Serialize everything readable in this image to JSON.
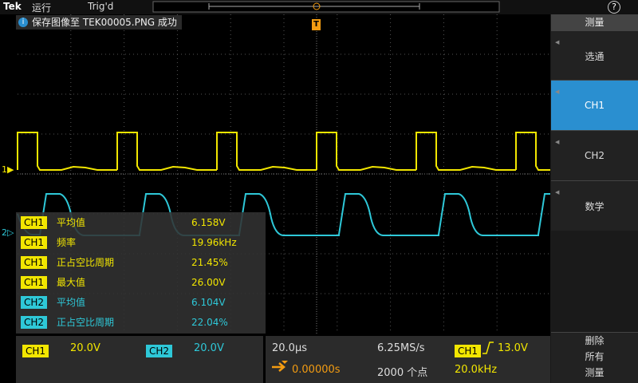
{
  "status_bar": {
    "brand": "Tek",
    "run_state": "运行",
    "trigger_state": "Trig'd",
    "help": "?"
  },
  "notification": "保存图像至 TEK00005.PNG 成功",
  "channel_markers": [
    "1",
    "2"
  ],
  "trigger_marker": "T",
  "measurements": [
    {
      "channel": "CH1",
      "name": "平均值",
      "value": "6.158V"
    },
    {
      "channel": "CH1",
      "name": "频率",
      "value": "19.96kHz"
    },
    {
      "channel": "CH1",
      "name": "正占空比周期",
      "value": "21.45%"
    },
    {
      "channel": "CH1",
      "name": "最大值",
      "value": "26.00V"
    },
    {
      "channel": "CH2",
      "name": "平均值",
      "value": "6.104V"
    },
    {
      "channel": "CH2",
      "name": "正占空比周期",
      "value": "22.04%"
    }
  ],
  "vertical": [
    {
      "channel": "CH1",
      "scale": "20.0V"
    },
    {
      "channel": "CH2",
      "scale": "20.0V"
    }
  ],
  "horizontal": {
    "time_scale": "20.0µs",
    "sample_rate": "6.25MS/s",
    "position": "0.00000s",
    "record_length": "2000 个点"
  },
  "trigger": {
    "source": "CH1",
    "level": "13.0V",
    "frequency": "20.0kHz"
  },
  "side_menu": {
    "title": "测量",
    "items": [
      "选通",
      "CH1",
      "CH2",
      "数学"
    ],
    "footer": [
      "删除",
      "所有",
      "测量"
    ]
  }
}
